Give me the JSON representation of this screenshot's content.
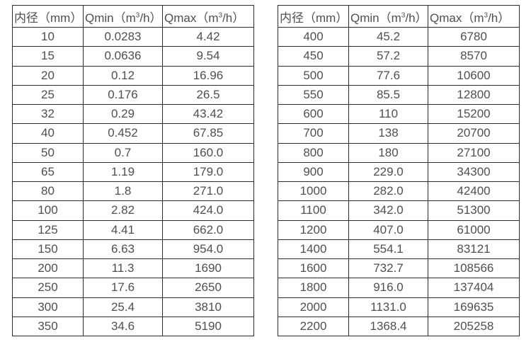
{
  "colors": {
    "background": "#ffffff",
    "border": "#2b2b2b",
    "text": "#4f4f4f"
  },
  "header": {
    "diameter": "内径（mm）",
    "qmin": {
      "pre": "Qmin（m",
      "sup": "3",
      "post": "/h）"
    },
    "qmax": {
      "pre": "Qmax（m",
      "sup": "3",
      "post": "/h）"
    }
  },
  "tables": [
    {
      "name": "small-diameters",
      "rows": [
        [
          "10",
          "0.0283",
          "4.42"
        ],
        [
          "15",
          "0.0636",
          "9.54"
        ],
        [
          "20",
          "0.12",
          "16.96"
        ],
        [
          "25",
          "0.176",
          "26.5"
        ],
        [
          "32",
          "0.29",
          "43.42"
        ],
        [
          "40",
          "0.452",
          "67.85"
        ],
        [
          "50",
          "0.7",
          "160.0"
        ],
        [
          "65",
          "1.19",
          "179.0"
        ],
        [
          "80",
          "1.8",
          "271.0"
        ],
        [
          "100",
          "2.82",
          "424.0"
        ],
        [
          "125",
          "4.41",
          "662.0"
        ],
        [
          "150",
          "6.63",
          "954.0"
        ],
        [
          "200",
          "11.3",
          "1690"
        ],
        [
          "250",
          "17.6",
          "2650"
        ],
        [
          "300",
          "25.4",
          "3810"
        ],
        [
          "350",
          "34.6",
          "5190"
        ]
      ]
    },
    {
      "name": "large-diameters",
      "rows": [
        [
          "400",
          "45.2",
          "6780"
        ],
        [
          "450",
          "57.2",
          "8570"
        ],
        [
          "500",
          "77.6",
          "10600"
        ],
        [
          "550",
          "85.5",
          "12800"
        ],
        [
          "600",
          "110",
          "15200"
        ],
        [
          "700",
          "138",
          "20700"
        ],
        [
          "800",
          "180",
          "27100"
        ],
        [
          "900",
          "229.0",
          "34300"
        ],
        [
          "1000",
          "282.0",
          "42400"
        ],
        [
          "1100",
          "342.0",
          "51300"
        ],
        [
          "1200",
          "407.0",
          "61000"
        ],
        [
          "1400",
          "554.1",
          "83121"
        ],
        [
          "1600",
          "732.7",
          "108566"
        ],
        [
          "1800",
          "916.0",
          "137404"
        ],
        [
          "2000",
          "1131.0",
          "169635"
        ],
        [
          "2200",
          "1368.4",
          "205258"
        ]
      ]
    }
  ]
}
